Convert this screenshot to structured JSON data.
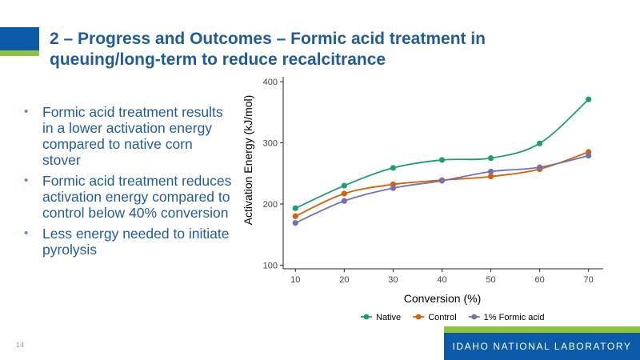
{
  "slide": {
    "title_line1": "2 – Progress and Outcomes – Formic acid treatment in",
    "title_line2": "queuing/long-term to reduce recalcitrance",
    "bullets": [
      "Formic acid treatment results in a lower activation energy compared to native corn stover",
      "Formic acid treatment reduces activation energy compared to control below 40% conversion",
      "Less energy needed to initiate pyrolysis"
    ],
    "page_number": "14",
    "footer_text": "IDAHO NATIONAL LABORATORY"
  },
  "colors": {
    "native": "#1b9e77",
    "control": "#d95f02",
    "formic": "#7570b3",
    "title": "#1f5c99",
    "brand_blue": "#0b5ba8",
    "brand_green": "#8cc43f"
  },
  "chart_data": {
    "type": "line",
    "title": "",
    "xlabel": "Conversion (%)",
    "ylabel": "Activation Energy (kJ/mol)",
    "x": [
      10,
      20,
      30,
      40,
      50,
      60,
      70
    ],
    "xlim": [
      7.5,
      73
    ],
    "ylim": [
      94,
      408
    ],
    "xticks": [
      10,
      20,
      30,
      40,
      50,
      60,
      70
    ],
    "yticks": [
      100,
      200,
      300,
      400
    ],
    "legend_position": "bottom",
    "series": [
      {
        "name": "Native",
        "color": "#1b9e77",
        "values": [
          193,
          230,
          259,
          272,
          275,
          299,
          371
        ]
      },
      {
        "name": "Control",
        "color": "#d95f02",
        "values": [
          180,
          217,
          232,
          239,
          245,
          257,
          285
        ]
      },
      {
        "name": "1% Formic acid",
        "color": "#7570b3",
        "values": [
          169,
          205,
          226,
          238,
          253,
          260,
          279
        ]
      }
    ]
  }
}
